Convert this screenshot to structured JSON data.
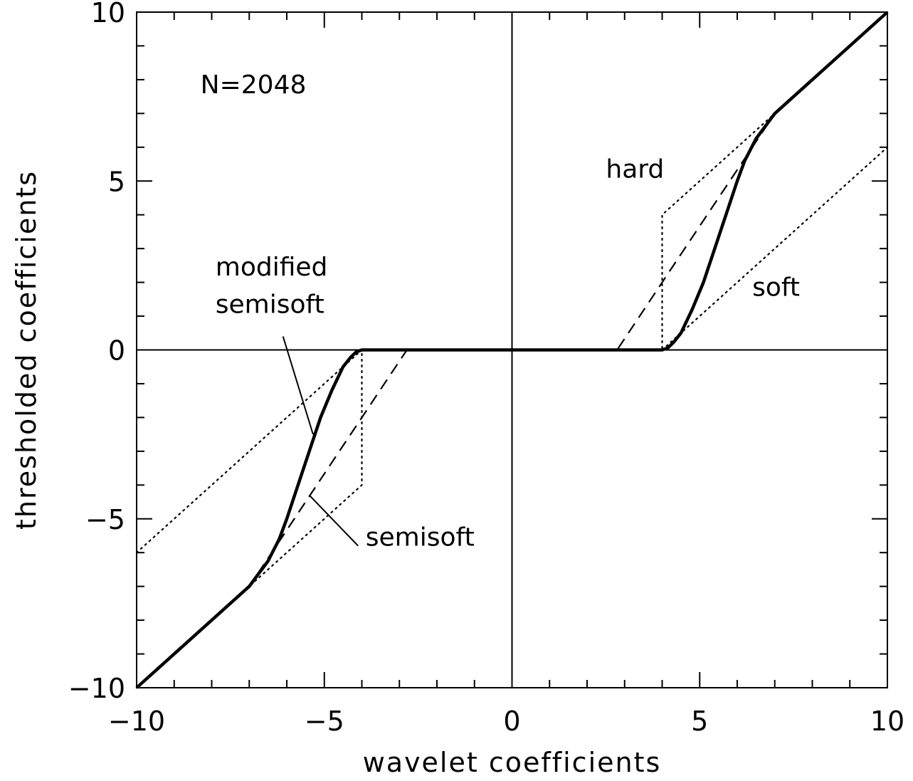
{
  "chart_data": {
    "type": "line",
    "title": "",
    "xlabel": "wavelet coefficients",
    "ylabel": "thresholded coefficients",
    "xlim": [
      -10,
      10
    ],
    "ylim": [
      -10,
      10
    ],
    "x_ticks": [
      -10,
      -5,
      0,
      5,
      10
    ],
    "y_ticks": [
      -10,
      -5,
      0,
      5,
      10
    ],
    "x_tick_labels": [
      "−10",
      "−5",
      "0",
      "5",
      "10"
    ],
    "y_tick_labels": [
      "−10",
      "−5",
      "0",
      "5",
      "10"
    ],
    "x_minor_step": 1,
    "y_minor_step": 1,
    "zero_lines": true,
    "grid": false,
    "legend": "none",
    "series": [
      {
        "name": "hard",
        "style": "dotted",
        "color": "#000000",
        "x": [
          -10,
          -4,
          -4,
          4,
          4,
          10
        ],
        "y": [
          -10,
          -4,
          0,
          0,
          4,
          10
        ]
      },
      {
        "name": "soft",
        "style": "dotted",
        "color": "#000000",
        "x": [
          -10,
          -4,
          4,
          10
        ],
        "y": [
          -6,
          0,
          0,
          6
        ]
      },
      {
        "name": "semisoft",
        "style": "dashed",
        "color": "#000000",
        "x": [
          -10,
          -7,
          -2.8,
          2.8,
          7,
          10
        ],
        "y": [
          -10,
          -7,
          0,
          0,
          7,
          10
        ]
      },
      {
        "name": "modified semisoft",
        "style": "solid-thick",
        "color": "#000000",
        "x": [
          -10,
          -7,
          -6.8,
          -6.5,
          -6.2,
          -6.0,
          -5.7,
          -5.4,
          -5.1,
          -4.8,
          -4.5,
          -4.3,
          -4.15,
          -4.0,
          0,
          4.0,
          4.15,
          4.3,
          4.5,
          4.8,
          5.1,
          5.4,
          5.7,
          6.0,
          6.2,
          6.5,
          6.8,
          7,
          10
        ],
        "y": [
          -10,
          -7,
          -6.7,
          -6.25,
          -5.6,
          -5.0,
          -4.0,
          -3.0,
          -2.0,
          -1.2,
          -0.5,
          -0.22,
          -0.06,
          0,
          0,
          0,
          0.06,
          0.22,
          0.5,
          1.2,
          2.0,
          3.0,
          4.0,
          5.0,
          5.6,
          6.25,
          6.7,
          7,
          10
        ]
      }
    ],
    "annotations": [
      {
        "text": "N=2048",
        "x": -8.3,
        "y": 7.6
      },
      {
        "text": "hard",
        "x": 2.5,
        "y": 5.1
      },
      {
        "text": "soft",
        "x": 6.4,
        "y": 1.6
      },
      {
        "text": "modified",
        "x": -7.9,
        "y": 2.2
      },
      {
        "text": "semisoft",
        "x": -7.9,
        "y": 1.1
      },
      {
        "text": "semisoft",
        "x": -3.9,
        "y": -5.8
      }
    ],
    "leaders": [
      {
        "label": "modified semisoft",
        "from": [
          -6.1,
          0.4
        ],
        "to": [
          -5.3,
          -2.5
        ]
      },
      {
        "label": "semisoft",
        "from": [
          -5.4,
          -4.3
        ],
        "to": [
          -4.1,
          -5.8
        ]
      }
    ]
  }
}
